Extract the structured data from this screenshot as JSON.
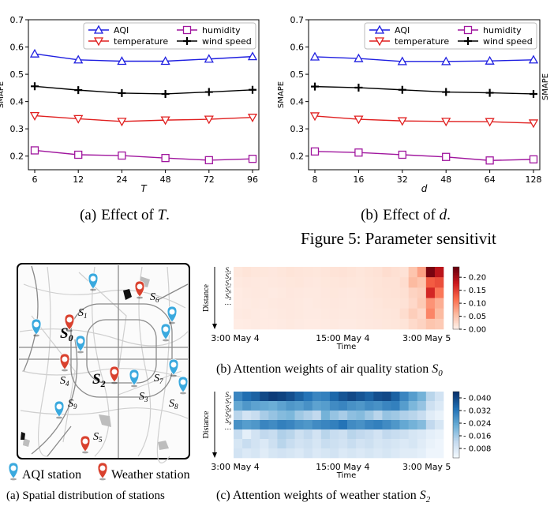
{
  "figure5": {
    "caption_visible": "Figure 5: Parameter sensitivit",
    "subcaption_a": {
      "prefix": "(a)",
      "text": "Effect of ",
      "symbol": "T",
      "suffix": "."
    },
    "subcaption_b": {
      "prefix": "(b)",
      "text": "Effect of ",
      "symbol": "d",
      "suffix": "."
    },
    "right_partial_label": "SMAPE"
  },
  "chart_data": [
    {
      "type": "line",
      "xlabel": "T",
      "ylabel": "SMAPE",
      "x": [
        "6",
        "12",
        "24",
        "48",
        "72",
        "96"
      ],
      "ylim": [
        0.15,
        0.7
      ],
      "yticks": [
        "0.2",
        "0.3",
        "0.4",
        "0.5",
        "0.6",
        "0.7"
      ],
      "legend_position": "top-right",
      "series": [
        {
          "name": "AQI",
          "color": "#1f1fe0",
          "marker": "triangle-up",
          "values": [
            0.575,
            0.553,
            0.548,
            0.548,
            0.556,
            0.565
          ]
        },
        {
          "name": "temperature",
          "color": "#e02020",
          "marker": "triangle-down",
          "values": [
            0.348,
            0.337,
            0.327,
            0.332,
            0.335,
            0.342
          ]
        },
        {
          "name": "humidity",
          "color": "#a0169e",
          "marker": "square",
          "values": [
            0.221,
            0.205,
            0.202,
            0.193,
            0.185,
            0.19
          ]
        },
        {
          "name": "wind speed",
          "color": "#000000",
          "marker": "plus",
          "values": [
            0.456,
            0.442,
            0.431,
            0.428,
            0.435,
            0.443
          ]
        }
      ]
    },
    {
      "type": "line",
      "xlabel": "d",
      "ylabel": "SMAPE",
      "x": [
        "8",
        "16",
        "32",
        "48",
        "64",
        "128"
      ],
      "ylim": [
        0.15,
        0.7
      ],
      "yticks": [
        "0.2",
        "0.3",
        "0.4",
        "0.5",
        "0.6",
        "0.7"
      ],
      "legend_position": "top-right",
      "series": [
        {
          "name": "AQI",
          "color": "#1f1fe0",
          "marker": "triangle-up",
          "values": [
            0.564,
            0.558,
            0.547,
            0.547,
            0.549,
            0.553
          ]
        },
        {
          "name": "temperature",
          "color": "#e02020",
          "marker": "triangle-down",
          "values": [
            0.347,
            0.335,
            0.329,
            0.327,
            0.326,
            0.321
          ]
        },
        {
          "name": "humidity",
          "color": "#a0169e",
          "marker": "square",
          "values": [
            0.217,
            0.213,
            0.205,
            0.197,
            0.184,
            0.188
          ]
        },
        {
          "name": "wind speed",
          "color": "#000000",
          "marker": "plus",
          "values": [
            0.455,
            0.451,
            0.443,
            0.435,
            0.432,
            0.428
          ]
        }
      ]
    },
    {
      "type": "heatmap",
      "colormap": "reds",
      "ylabel": "Distance",
      "xlabel": "Time",
      "row_labels": [
        "S1",
        "S4",
        "S2",
        "S6",
        "S5",
        "…"
      ],
      "xticks": [
        "3:00 May 4",
        "15:00 May 4",
        "3:00 May 5"
      ],
      "colorbar_ticks": [
        "0.00",
        "0.05",
        "0.10",
        "0.15",
        "0.20"
      ],
      "vmin": 0,
      "vmax": 0.24,
      "values": [
        [
          0.015,
          0.018,
          0.016,
          0.015,
          0.014,
          0.016,
          0.018,
          0.017,
          0.016,
          0.015,
          0.017,
          0.019,
          0.02,
          0.018,
          0.016,
          0.018,
          0.02,
          0.025,
          0.022,
          0.02,
          0.05,
          0.08,
          0.23,
          0.19
        ],
        [
          0.012,
          0.014,
          0.013,
          0.012,
          0.013,
          0.014,
          0.015,
          0.016,
          0.014,
          0.013,
          0.015,
          0.016,
          0.017,
          0.016,
          0.015,
          0.017,
          0.018,
          0.02,
          0.02,
          0.025,
          0.06,
          0.05,
          0.13,
          0.14
        ],
        [
          0.01,
          0.012,
          0.013,
          0.012,
          0.011,
          0.012,
          0.014,
          0.013,
          0.012,
          0.012,
          0.014,
          0.015,
          0.014,
          0.013,
          0.014,
          0.016,
          0.018,
          0.019,
          0.02,
          0.022,
          0.035,
          0.04,
          0.17,
          0.11
        ],
        [
          0.01,
          0.011,
          0.012,
          0.011,
          0.012,
          0.013,
          0.013,
          0.012,
          0.011,
          0.012,
          0.013,
          0.014,
          0.013,
          0.012,
          0.013,
          0.014,
          0.016,
          0.018,
          0.018,
          0.02,
          0.03,
          0.045,
          0.09,
          0.07
        ],
        [
          0.011,
          0.012,
          0.011,
          0.01,
          0.011,
          0.012,
          0.013,
          0.012,
          0.011,
          0.011,
          0.012,
          0.013,
          0.012,
          0.012,
          0.013,
          0.014,
          0.015,
          0.016,
          0.017,
          0.025,
          0.04,
          0.03,
          0.1,
          0.06
        ],
        [
          0.009,
          0.01,
          0.011,
          0.01,
          0.01,
          0.011,
          0.012,
          0.011,
          0.01,
          0.01,
          0.011,
          0.012,
          0.011,
          0.011,
          0.012,
          0.013,
          0.014,
          0.015,
          0.016,
          0.018,
          0.028,
          0.035,
          0.05,
          0.045
        ]
      ]
    },
    {
      "type": "heatmap",
      "colormap": "blues",
      "ylabel": "Distance",
      "xlabel": "Time",
      "row_labels": [
        "S3",
        "S7",
        "S8",
        "S0",
        "S9",
        "…"
      ],
      "xticks": [
        "3:00 May 4",
        "15:00 May 4",
        "3:00 May 5"
      ],
      "colorbar_ticks": [
        "0.008",
        "0.016",
        "0.024",
        "0.032",
        "0.040"
      ],
      "vmin": 0.002,
      "vmax": 0.044,
      "values": [
        [
          0.03,
          0.034,
          0.036,
          0.04,
          0.042,
          0.041,
          0.039,
          0.036,
          0.033,
          0.03,
          0.031,
          0.035,
          0.038,
          0.04,
          0.038,
          0.036,
          0.039,
          0.04,
          0.036,
          0.03,
          0.026,
          0.022,
          0.014,
          0.01
        ],
        [
          0.024,
          0.027,
          0.025,
          0.024,
          0.023,
          0.025,
          0.027,
          0.026,
          0.028,
          0.025,
          0.026,
          0.029,
          0.03,
          0.028,
          0.027,
          0.029,
          0.028,
          0.03,
          0.031,
          0.026,
          0.021,
          0.018,
          0.011,
          0.008
        ],
        [
          0.014,
          0.01,
          0.012,
          0.016,
          0.018,
          0.02,
          0.021,
          0.017,
          0.015,
          0.013,
          0.022,
          0.018,
          0.016,
          0.019,
          0.02,
          0.017,
          0.014,
          0.018,
          0.017,
          0.015,
          0.014,
          0.012,
          0.007,
          0.005
        ],
        [
          0.028,
          0.026,
          0.027,
          0.03,
          0.029,
          0.031,
          0.03,
          0.028,
          0.027,
          0.029,
          0.03,
          0.031,
          0.033,
          0.029,
          0.028,
          0.03,
          0.031,
          0.029,
          0.027,
          0.024,
          0.022,
          0.02,
          0.013,
          0.009
        ],
        [
          0.012,
          0.006,
          0.01,
          0.013,
          0.012,
          0.015,
          0.014,
          0.011,
          0.013,
          0.01,
          0.014,
          0.012,
          0.011,
          0.014,
          0.013,
          0.012,
          0.01,
          0.013,
          0.012,
          0.011,
          0.009,
          0.008,
          0.006,
          0.005
        ],
        [
          0.009,
          0.012,
          0.01,
          0.008,
          0.011,
          0.014,
          0.012,
          0.01,
          0.011,
          0.009,
          0.012,
          0.011,
          0.01,
          0.012,
          0.01,
          0.011,
          0.009,
          0.01,
          0.009,
          0.008,
          0.009,
          0.007,
          0.005,
          0.004
        ],
        [
          0.01,
          0.008,
          0.009,
          0.007,
          0.009,
          0.01,
          0.009,
          0.008,
          0.01,
          0.008,
          0.009,
          0.01,
          0.008,
          0.009,
          0.008,
          0.009,
          0.008,
          0.009,
          0.008,
          0.007,
          0.007,
          0.006,
          0.004,
          0.004
        ]
      ]
    }
  ],
  "figure6": {
    "caption_a": "(a) Spatial distribution of stations",
    "caption_b_text": "(b) Attention weights of air quality station ",
    "caption_b_station": "S",
    "caption_b_sub": "0",
    "caption_c_text": "(c) Attention weights of weather station ",
    "caption_c_station": "S",
    "caption_c_sub": "2",
    "legend_aqi": "AQI station",
    "legend_weather": "Weather station",
    "map_labels": [
      {
        "id": "S1",
        "text": "S",
        "sub": "1"
      },
      {
        "id": "S0",
        "text": "S",
        "sub": "0"
      },
      {
        "id": "S6",
        "text": "S",
        "sub": "6"
      },
      {
        "id": "S4",
        "text": "S",
        "sub": "4"
      },
      {
        "id": "S2",
        "text": "S",
        "sub": "2"
      },
      {
        "id": "S7",
        "text": "S",
        "sub": "7"
      },
      {
        "id": "S3",
        "text": "S",
        "sub": "3"
      },
      {
        "id": "S8",
        "text": "S",
        "sub": "8"
      },
      {
        "id": "S9",
        "text": "S",
        "sub": "9"
      },
      {
        "id": "S5",
        "text": "S",
        "sub": "5"
      }
    ],
    "colors": {
      "aqi_pin": "#3aa9de",
      "weather_pin": "#d9412e"
    }
  }
}
